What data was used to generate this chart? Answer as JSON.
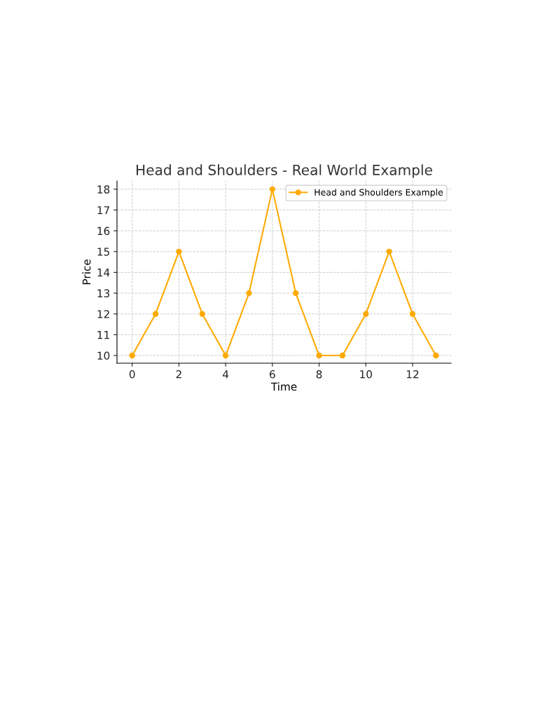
{
  "chart_data": {
    "type": "line",
    "title": "Head and Shoulders - Real World Example",
    "xlabel": "Time",
    "ylabel": "Price",
    "x": [
      0,
      1,
      2,
      3,
      4,
      5,
      6,
      7,
      8,
      9,
      10,
      11,
      12,
      13
    ],
    "series": [
      {
        "name": "Head and Shoulders Example",
        "color": "#ffaa00",
        "values": [
          10,
          12,
          15,
          12,
          10,
          13,
          18,
          13,
          10,
          10,
          12,
          15,
          12,
          10
        ]
      }
    ],
    "xlim": [
      -0.65,
      13.65
    ],
    "ylim": [
      9.63,
      18.4
    ],
    "xticks": [
      0,
      2,
      4,
      6,
      8,
      10,
      12
    ],
    "yticks": [
      10,
      11,
      12,
      13,
      14,
      15,
      16,
      17,
      18
    ],
    "grid": true,
    "legend": "top right",
    "marker": "circle",
    "line_style": "solid"
  }
}
